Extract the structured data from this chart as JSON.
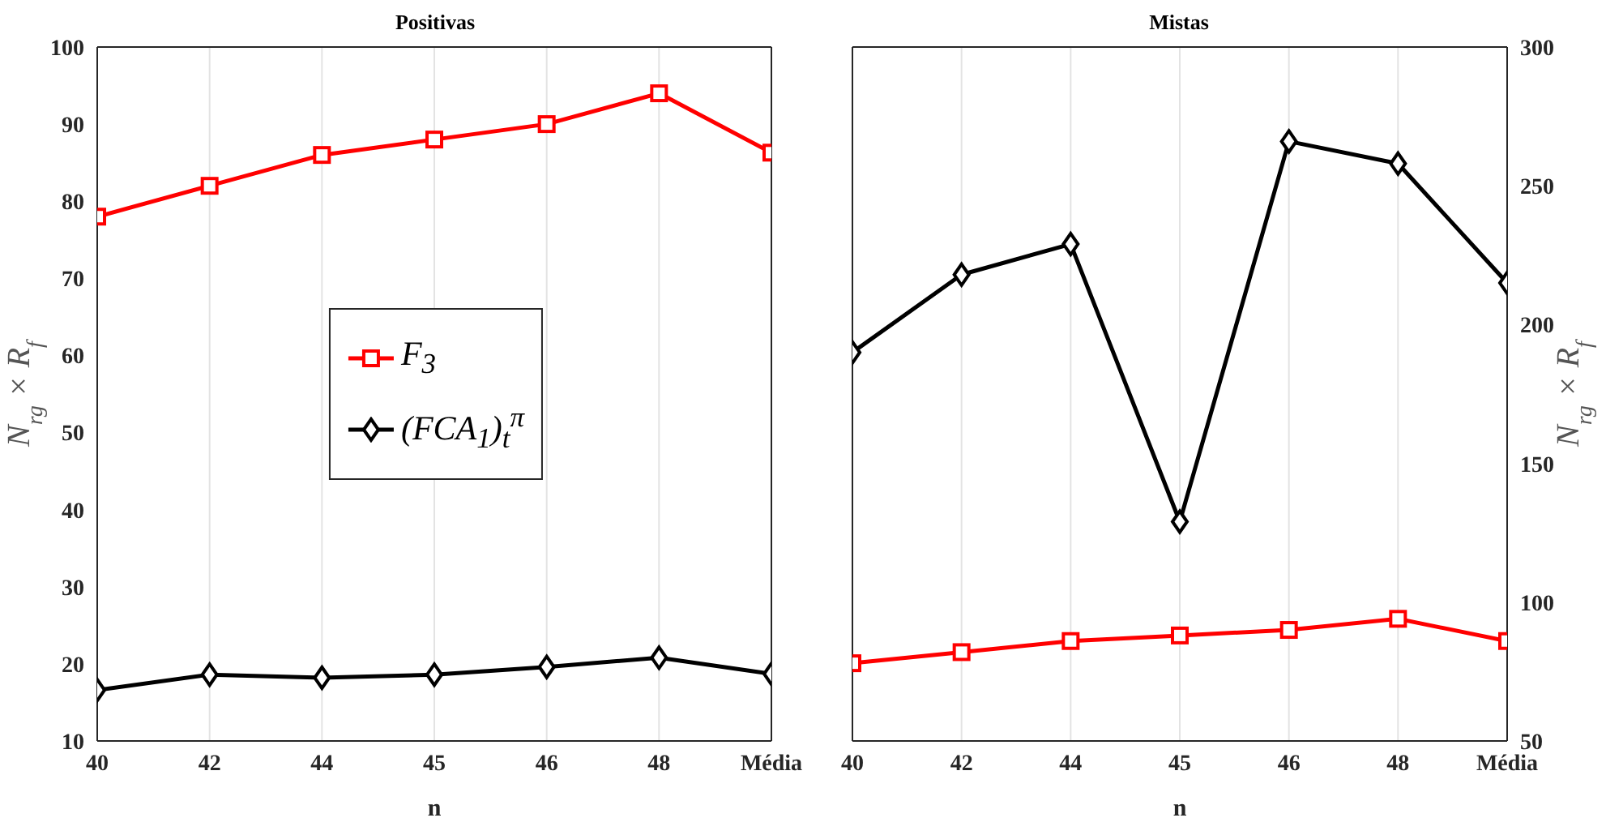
{
  "chart_data": [
    {
      "type": "line",
      "title": "Positivas",
      "xlabel": "n",
      "ylabel": "N$_{rg}$ × R$_{f}$",
      "categories": [
        "40",
        "42",
        "44",
        "45",
        "46",
        "48",
        "Média"
      ],
      "series": [
        {
          "name": "F$_{3}$",
          "color": "#ff0000",
          "marker": "square",
          "values": [
            78,
            82,
            86,
            88,
            90,
            94,
            86.3
          ]
        },
        {
          "name": "(FCA$_{1}$)$_{t}$$^{π}$",
          "color": "#000000",
          "marker": "diamond",
          "values": [
            16.6,
            18.6,
            18.2,
            18.6,
            19.6,
            20.8,
            18.7
          ]
        }
      ],
      "ylim": [
        10,
        100
      ],
      "yticks": [
        10,
        20,
        30,
        40,
        50,
        60,
        70,
        80,
        90,
        100
      ],
      "grid": true,
      "legend": "center"
    },
    {
      "type": "line",
      "title": "Mistas",
      "xlabel": "n",
      "y2label": "N$_{rg}$ × R$_{f}$",
      "categories": [
        "40",
        "42",
        "44",
        "45",
        "46",
        "48",
        "Média"
      ],
      "series": [
        {
          "color": "#000000",
          "marker": "diamond",
          "axis": "y2",
          "values": [
            190,
            218,
            229,
            129,
            266,
            258,
            215
          ]
        },
        {
          "color": "#ff0000",
          "marker": "square",
          "axis": "y2",
          "values": [
            78,
            82,
            86,
            88,
            90,
            94,
            86
          ]
        }
      ],
      "y2lim": [
        50,
        300
      ],
      "y2ticks": [
        50,
        100,
        150,
        200,
        250,
        300
      ],
      "grid": true
    }
  ]
}
